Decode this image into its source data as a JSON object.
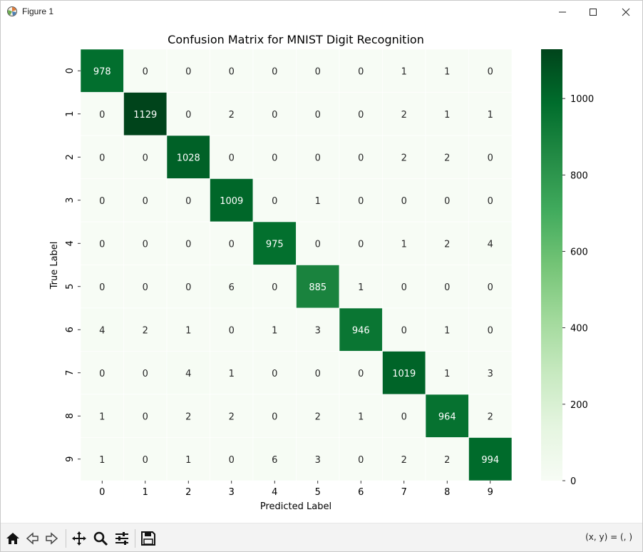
{
  "window": {
    "title": "Figure 1",
    "app_icon": "matplotlib-figure-icon",
    "controls": [
      "minimize-icon",
      "maximize-icon",
      "close-icon"
    ]
  },
  "toolbar": {
    "buttons": [
      "home-icon",
      "back-arrow-icon",
      "forward-arrow-icon",
      "pan-move-icon",
      "zoom-magnifier-icon",
      "configure-subplots-icon",
      "save-floppy-icon"
    ],
    "coords_text": "(x, y) = (, )"
  },
  "chart_data": {
    "type": "heatmap",
    "title": "Confusion Matrix for MNIST Digit Recognition",
    "xlabel": "Predicted Label",
    "ylabel": "True Label",
    "x_categories": [
      "0",
      "1",
      "2",
      "3",
      "4",
      "5",
      "6",
      "7",
      "8",
      "9"
    ],
    "y_categories": [
      "0",
      "1",
      "2",
      "3",
      "4",
      "5",
      "6",
      "7",
      "8",
      "9"
    ],
    "values": [
      [
        978,
        0,
        0,
        0,
        0,
        0,
        0,
        1,
        1,
        0
      ],
      [
        0,
        1129,
        0,
        2,
        0,
        0,
        0,
        2,
        1,
        1
      ],
      [
        0,
        0,
        1028,
        0,
        0,
        0,
        0,
        2,
        2,
        0
      ],
      [
        0,
        0,
        0,
        1009,
        0,
        1,
        0,
        0,
        0,
        0
      ],
      [
        0,
        0,
        0,
        0,
        975,
        0,
        0,
        1,
        2,
        4
      ],
      [
        0,
        0,
        0,
        6,
        0,
        885,
        1,
        0,
        0,
        0
      ],
      [
        4,
        2,
        1,
        0,
        1,
        3,
        946,
        0,
        1,
        0
      ],
      [
        0,
        0,
        4,
        1,
        0,
        0,
        0,
        1019,
        1,
        3
      ],
      [
        1,
        0,
        2,
        2,
        0,
        2,
        1,
        0,
        964,
        2
      ],
      [
        1,
        0,
        1,
        0,
        6,
        3,
        0,
        2,
        2,
        994
      ]
    ],
    "colormap": "Greens",
    "colorbar": {
      "min": 0,
      "max": 1129,
      "ticks": [
        0,
        200,
        400,
        600,
        800,
        1000
      ]
    },
    "annotations": true,
    "grid": false
  }
}
